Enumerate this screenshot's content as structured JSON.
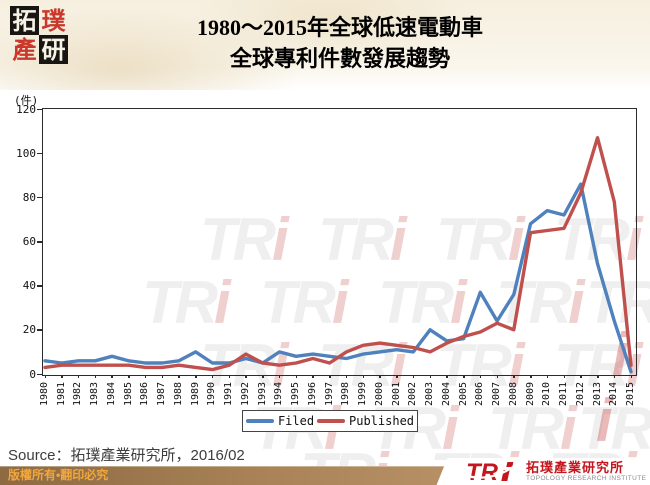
{
  "slide": {
    "seal_logo": {
      "cells": [
        {
          "char": "拓",
          "style": "dark"
        },
        {
          "char": "璞",
          "style": "red"
        },
        {
          "char": "產",
          "style": "red"
        },
        {
          "char": "研",
          "style": "dark"
        }
      ]
    },
    "title_line1": "1980～2015年全球低速電動車",
    "title_line2": "全球專利件數發展趨勢",
    "source_text": "Source：拓璞產業研究所，2016/02",
    "copyright_text": "版權所有•翻印必究",
    "watermark_text": "TR",
    "watermark_i": "i",
    "footer_logo": {
      "mark": "TRi",
      "company_zh": "拓璞產業研究所",
      "company_en": "TOPOLOGY RESEARCH INSTITUTE"
    }
  },
  "chart_data": {
    "type": "line",
    "title": "1980～2015年全球低速電動車 全球專利件數發展趨勢",
    "unit_label": "(件)",
    "xlabel": "",
    "ylabel": "件",
    "ylim": [
      0,
      120
    ],
    "yticks": [
      0,
      20,
      40,
      60,
      80,
      100,
      120
    ],
    "grid": false,
    "legend_position": "bottom-center",
    "x": [
      1980,
      1981,
      1982,
      1983,
      1984,
      1985,
      1986,
      1987,
      1988,
      1989,
      1990,
      1991,
      1992,
      1993,
      1994,
      1995,
      1996,
      1997,
      1998,
      1999,
      2000,
      2001,
      2002,
      2003,
      2004,
      2005,
      2006,
      2007,
      2008,
      2009,
      2010,
      2011,
      2012,
      2013,
      2014,
      2015
    ],
    "series": [
      {
        "name": "Filed",
        "color": "#4f81bd",
        "values": [
          6,
          5,
          6,
          6,
          8,
          6,
          5,
          5,
          6,
          10,
          5,
          5,
          7,
          5,
          10,
          8,
          9,
          8,
          7,
          9,
          10,
          11,
          10,
          20,
          15,
          16,
          37,
          24,
          36,
          68,
          74,
          72,
          86,
          50,
          24,
          1
        ]
      },
      {
        "name": "Published",
        "color": "#c0504d",
        "values": [
          3,
          4,
          4,
          4,
          4,
          4,
          3,
          3,
          4,
          3,
          2,
          4,
          9,
          5,
          4,
          5,
          7,
          5,
          10,
          13,
          14,
          13,
          12,
          10,
          14,
          17,
          19,
          23,
          20,
          64,
          65,
          66,
          82,
          107,
          78,
          4
        ]
      }
    ]
  }
}
